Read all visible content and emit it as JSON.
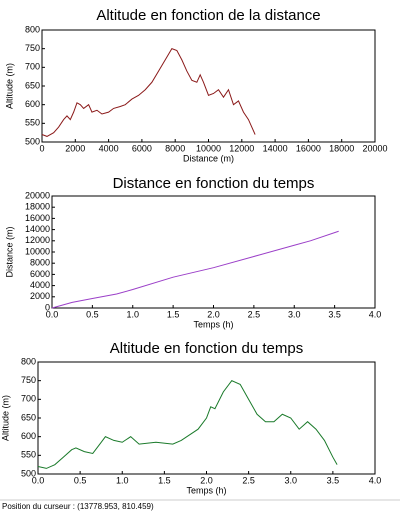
{
  "chart_data": [
    {
      "type": "line",
      "title": "Altitude en fonction de la distance",
      "x_label": "Distance (m)",
      "y_label": "Altitude (m)",
      "color": "#8b1a1a",
      "x": [
        0,
        300,
        700,
        1000,
        1300,
        1500,
        1700,
        1900,
        2100,
        2300,
        2500,
        2800,
        3000,
        3300,
        3600,
        4000,
        4300,
        4700,
        5000,
        5400,
        5800,
        6200,
        6600,
        7000,
        7400,
        7800,
        8100,
        8400,
        8700,
        9000,
        9300,
        9500,
        9700,
        10000,
        10300,
        10600,
        10900,
        11200,
        11500,
        11800,
        12100,
        12400,
        12600,
        12800
      ],
      "values": [
        520,
        515,
        525,
        540,
        560,
        570,
        560,
        580,
        605,
        600,
        590,
        600,
        580,
        585,
        575,
        580,
        590,
        595,
        600,
        615,
        625,
        640,
        660,
        690,
        720,
        750,
        745,
        720,
        690,
        665,
        660,
        680,
        660,
        625,
        630,
        640,
        620,
        640,
        600,
        610,
        580,
        560,
        540,
        520
      ],
      "xlim": [
        0,
        20000
      ],
      "ylim": [
        500,
        800
      ],
      "xticks": [
        0,
        2000,
        4000,
        6000,
        8000,
        10000,
        12000,
        14000,
        16000,
        18000,
        20000
      ],
      "yticks": [
        500,
        550,
        600,
        650,
        700,
        750,
        800
      ]
    },
    {
      "type": "line",
      "title": "Distance en fonction du temps",
      "x_label": "Temps (h)",
      "y_label": "Distance (m)",
      "color": "#9b3fc8",
      "x": [
        0,
        0.25,
        0.5,
        0.8,
        1.0,
        1.5,
        2.0,
        2.5,
        3.0,
        3.2,
        3.55
      ],
      "values": [
        0,
        1000,
        1700,
        2500,
        3300,
        5500,
        7200,
        9200,
        11200,
        12000,
        13700
      ],
      "xlim": [
        0,
        4
      ],
      "ylim": [
        0,
        20000
      ],
      "xticks": [
        {
          "value": 0,
          "label": "0.0"
        },
        0.5,
        {
          "value": 1,
          "label": "1.0"
        },
        1.5,
        {
          "value": 2,
          "label": "2.0"
        },
        2.5,
        {
          "value": 3,
          "label": "3.0"
        },
        3.5,
        {
          "value": 4,
          "label": "4.0"
        }
      ],
      "yticks": [
        0,
        2000,
        4000,
        6000,
        8000,
        10000,
        12000,
        14000,
        16000,
        18000,
        20000
      ]
    },
    {
      "type": "line",
      "title": "Altitude en fonction du temps",
      "x_label": "Temps (h)",
      "y_label": "Altitude (m)",
      "color": "#1a7a2a",
      "x": [
        0,
        0.1,
        0.2,
        0.3,
        0.4,
        0.45,
        0.55,
        0.65,
        0.75,
        0.8,
        0.9,
        1.0,
        1.1,
        1.2,
        1.4,
        1.6,
        1.7,
        1.8,
        1.9,
        2.0,
        2.05,
        2.1,
        2.2,
        2.3,
        2.4,
        2.5,
        2.6,
        2.7,
        2.8,
        2.9,
        3.0,
        3.1,
        3.2,
        3.3,
        3.4,
        3.5,
        3.55
      ],
      "values": [
        520,
        515,
        525,
        545,
        565,
        570,
        560,
        555,
        585,
        600,
        590,
        585,
        600,
        580,
        585,
        580,
        590,
        605,
        620,
        650,
        680,
        675,
        720,
        750,
        740,
        700,
        660,
        640,
        640,
        660,
        650,
        620,
        640,
        620,
        590,
        545,
        525
      ],
      "xlim": [
        0,
        4
      ],
      "ylim": [
        500,
        800
      ],
      "xticks": [
        {
          "value": 0,
          "label": "0.0"
        },
        0.5,
        {
          "value": 1,
          "label": "1.0"
        },
        1.5,
        {
          "value": 2,
          "label": "2.0"
        },
        2.5,
        {
          "value": 3,
          "label": "3.0"
        },
        3.5,
        {
          "value": 4,
          "label": "4.0"
        }
      ],
      "yticks": [
        500,
        550,
        600,
        650,
        700,
        750,
        800
      ]
    }
  ],
  "status_bar": {
    "text": "Position du curseur : (13778.953, 810.459)"
  }
}
